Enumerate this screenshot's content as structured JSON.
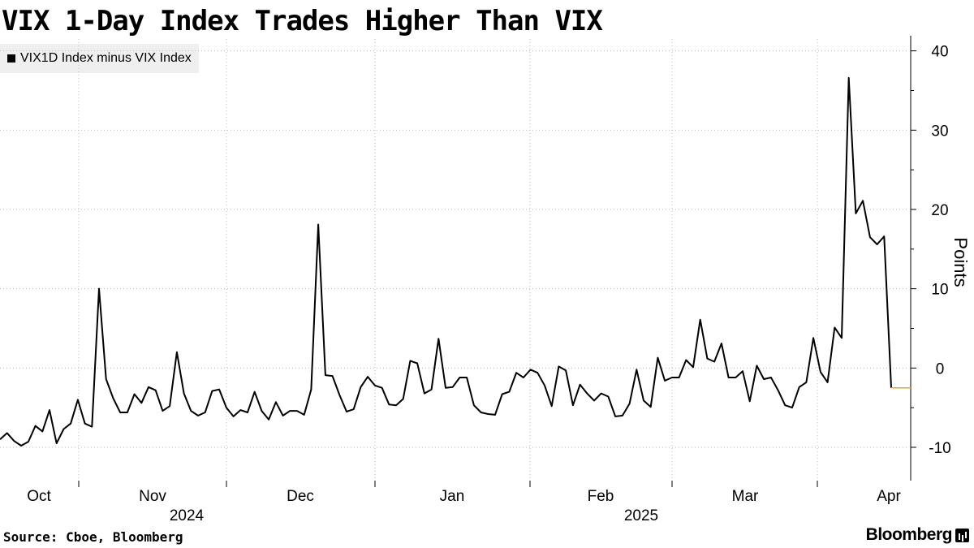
{
  "title": "VIX 1-Day Index Trades Higher Than VIX",
  "legend": {
    "label": "VIX1D Index minus VIX Index"
  },
  "footer": {
    "source": "Source: Cboe, Bloomberg",
    "brand": "Bloomberg"
  },
  "colors": {
    "series": "#000000",
    "last_value_marker": "#e8a33d",
    "grid": "#bbbbbb"
  },
  "chart_data": {
    "type": "line",
    "title": "VIX 1-Day Index Trades Higher Than VIX",
    "xlabel": "",
    "ylabel": "Points",
    "ylim": [
      -14.2,
      41.5
    ],
    "yticks": [
      -10,
      0,
      10,
      20,
      30,
      40
    ],
    "grid": true,
    "legend_position": "top-left",
    "y_axis_side": "right",
    "x_tick_labels": [
      "Oct",
      "Nov",
      "Dec",
      "Jan",
      "Feb",
      "Mar",
      "Apr"
    ],
    "year_labels": [
      {
        "label": "2024",
        "anchor": "Nov"
      },
      {
        "label": "2025",
        "anchor": "Feb"
      }
    ],
    "series": [
      {
        "name": "VIX1D Index minus VIX Index",
        "x_start": "2024-09-27",
        "frequency": "trading days",
        "values": [
          -9.0,
          -8.2,
          -9.2,
          -9.8,
          -9.3,
          -7.3,
          -8.0,
          -5.3,
          -9.5,
          -7.7,
          -7.0,
          -4.0,
          -7.0,
          -7.4,
          10.0,
          -1.4,
          -3.8,
          -5.6,
          -5.6,
          -3.3,
          -4.4,
          -2.4,
          -2.8,
          -5.4,
          -4.8,
          2.0,
          -3.2,
          -5.4,
          -6.0,
          -5.6,
          -2.9,
          -2.7,
          -5.0,
          -6.1,
          -5.3,
          -5.6,
          -3.0,
          -5.4,
          -6.5,
          -4.3,
          -6.0,
          -5.4,
          -5.4,
          -5.9,
          -2.7,
          18.1,
          -0.9,
          -1.0,
          -3.4,
          -5.5,
          -5.2,
          -2.4,
          -1.1,
          -2.2,
          -2.5,
          -4.6,
          -4.7,
          -3.9,
          0.9,
          0.6,
          -3.2,
          -2.7,
          3.7,
          -2.5,
          -2.4,
          -1.2,
          -1.2,
          -4.7,
          -5.6,
          -5.8,
          -5.9,
          -3.3,
          -3.0,
          -0.6,
          -1.2,
          -0.2,
          -0.6,
          -2.2,
          -4.8,
          0.2,
          -0.3,
          -4.7,
          -2.1,
          -3.2,
          -4.1,
          -3.2,
          -3.6,
          -6.1,
          -6.0,
          -4.5,
          -0.2,
          -4.1,
          -4.9,
          1.3,
          -1.6,
          -1.2,
          -1.2,
          1.0,
          0.1,
          6.1,
          1.2,
          0.8,
          3.1,
          -1.2,
          -1.2,
          -0.4,
          -4.2,
          0.3,
          -1.4,
          -1.2,
          -2.8,
          -4.7,
          -5.0,
          -2.4,
          -1.8,
          3.8,
          -0.5,
          -1.8,
          5.1,
          3.8,
          36.6,
          19.5,
          21.1,
          16.5,
          15.6,
          16.6,
          -2.5
        ]
      }
    ]
  }
}
